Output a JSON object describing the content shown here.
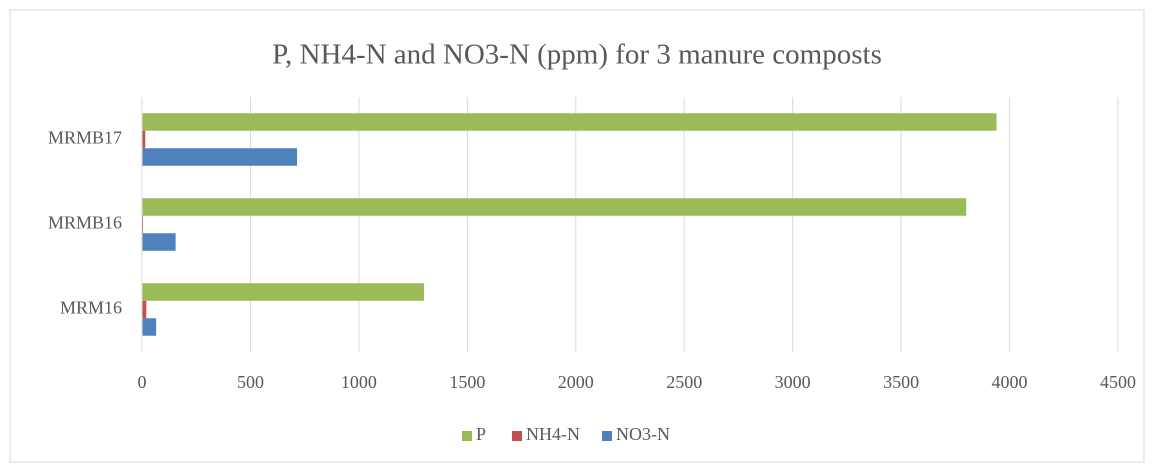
{
  "chart_data": {
    "type": "hbar",
    "title": "P, NH4-N and NO3-N (ppm) for 3 manure composts",
    "categories": [
      "MRM16",
      "MRMB16",
      "MRMB17"
    ],
    "series": [
      {
        "name": "P",
        "color": "#9bbb59",
        "values": [
          1300,
          3800,
          3940
        ]
      },
      {
        "name": "NH4-N",
        "color": "#c0504d",
        "values": [
          20,
          5,
          15
        ]
      },
      {
        "name": "NO3-N",
        "color": "#4f81bd",
        "values": [
          65,
          155,
          715
        ]
      }
    ],
    "xlim": [
      0,
      4500
    ],
    "xticks": [
      0,
      500,
      1000,
      1500,
      2000,
      2500,
      3000,
      3500,
      4000,
      4500
    ],
    "grid": true,
    "legend": "bottom"
  }
}
